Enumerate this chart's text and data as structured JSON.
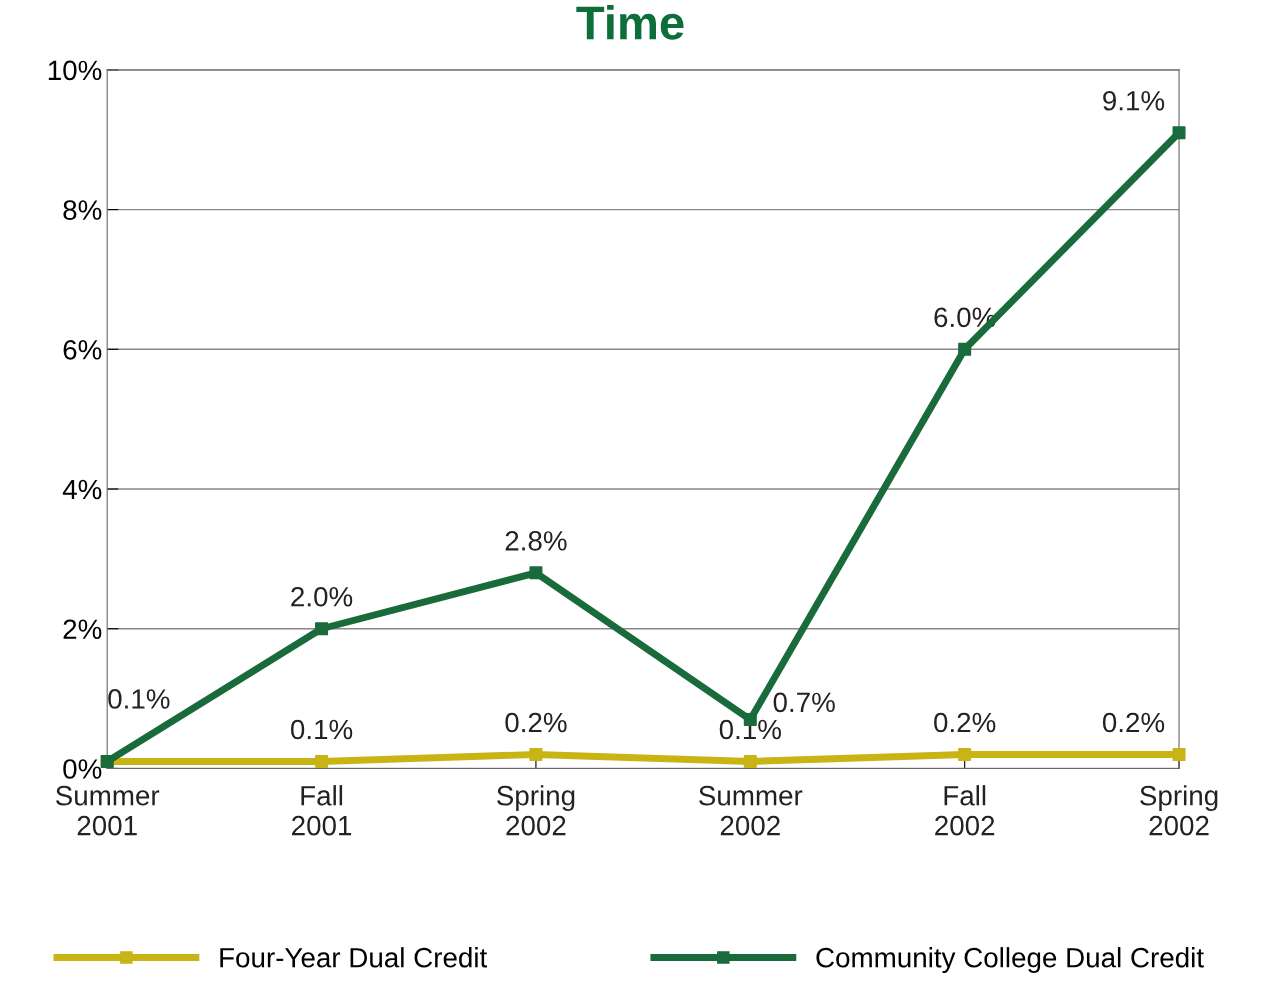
{
  "chart_data": {
    "type": "line",
    "title": "Time",
    "categories": [
      "Summer\n2001",
      "Fall\n2001",
      "Spring\n2002",
      "Summer\n2002",
      "Fall\n2002",
      "Spring\n2002"
    ],
    "series": [
      {
        "name": "Four-Year Dual Credit",
        "color": "#c8b414",
        "values": [
          0.1,
          0.1,
          0.2,
          0.1,
          0.2,
          0.2
        ],
        "value_labels": [
          null,
          "0.1%",
          "0.2%",
          "0.1%",
          "0.2%",
          "0.2%"
        ]
      },
      {
        "name": "Community College Dual Credit",
        "color": "#1a6b3c",
        "values": [
          0.1,
          2.0,
          2.8,
          0.7,
          6.0,
          9.1
        ],
        "value_labels": [
          "0.1%",
          "2.0%",
          "2.8%",
          "0.7%",
          "6.0%",
          "9.1%"
        ]
      }
    ],
    "ylim": [
      0,
      10
    ],
    "yticks": [
      {
        "value": 0,
        "label": "0%"
      },
      {
        "value": 2,
        "label": "2%"
      },
      {
        "value": 4,
        "label": "4%"
      },
      {
        "value": 6,
        "label": "6%"
      },
      {
        "value": 8,
        "label": "8%"
      },
      {
        "value": 10,
        "label": "10%"
      }
    ],
    "grid": "y",
    "legend": "bottom",
    "marker": "square",
    "line_style": "solid"
  }
}
